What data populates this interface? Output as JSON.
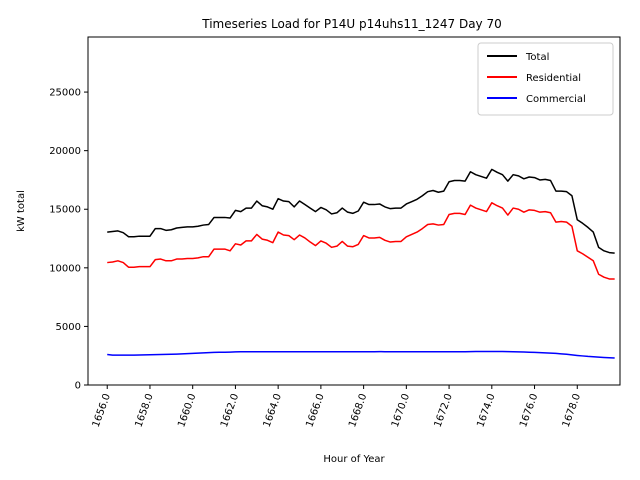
{
  "chart_data": {
    "type": "line",
    "title": "Timeseries Load for P14U p14uhs11_1247  Day 70",
    "xlabel": "Hour of Year",
    "ylabel": "kW total",
    "xlim": [
      1655.1,
      1680.0
    ],
    "ylim": [
      0,
      29700
    ],
    "x_ticks": [
      1656,
      1658,
      1660,
      1662,
      1664,
      1666,
      1668,
      1670,
      1672,
      1674,
      1676,
      1678
    ],
    "x_tick_labels": [
      "1656.0",
      "1658.0",
      "1660.0",
      "1662.0",
      "1664.0",
      "1666.0",
      "1668.0",
      "1670.0",
      "1672.0",
      "1674.0",
      "1676.0",
      "1678.0"
    ],
    "y_ticks": [
      0,
      5000,
      10000,
      15000,
      20000,
      25000
    ],
    "y_tick_labels": [
      "0",
      "5000",
      "10000",
      "15000",
      "20000",
      "25000"
    ],
    "legend_position": "upper-right",
    "x": [
      1656.0,
      1656.25,
      1656.5,
      1656.75,
      1657.0,
      1657.25,
      1657.5,
      1657.75,
      1658.0,
      1658.25,
      1658.5,
      1658.75,
      1659.0,
      1659.25,
      1659.5,
      1659.75,
      1660.0,
      1660.25,
      1660.5,
      1660.75,
      1661.0,
      1661.25,
      1661.5,
      1661.75,
      1662.0,
      1662.25,
      1662.5,
      1662.75,
      1663.0,
      1663.25,
      1663.5,
      1663.75,
      1664.0,
      1664.25,
      1664.5,
      1664.75,
      1665.0,
      1665.25,
      1665.5,
      1665.75,
      1666.0,
      1666.25,
      1666.5,
      1666.75,
      1667.0,
      1667.25,
      1667.5,
      1667.75,
      1668.0,
      1668.25,
      1668.5,
      1668.75,
      1669.0,
      1669.25,
      1669.5,
      1669.75,
      1670.0,
      1670.25,
      1670.5,
      1670.75,
      1671.0,
      1671.25,
      1671.5,
      1671.75,
      1672.0,
      1672.25,
      1672.5,
      1672.75,
      1673.0,
      1673.25,
      1673.5,
      1673.75,
      1674.0,
      1674.25,
      1674.5,
      1674.75,
      1675.0,
      1675.25,
      1675.5,
      1675.75,
      1676.0,
      1676.25,
      1676.5,
      1676.75,
      1677.0,
      1677.25,
      1677.5,
      1677.75,
      1678.0,
      1678.25,
      1678.5,
      1678.75,
      1679.0,
      1679.25,
      1679.5,
      1679.75
    ],
    "series": [
      {
        "name": "Total",
        "color": "#000000",
        "values": [
          13050,
          13100,
          13150,
          13000,
          12650,
          12650,
          12700,
          12700,
          12700,
          13350,
          13350,
          13200,
          13250,
          13400,
          13450,
          13500,
          13500,
          13550,
          13650,
          13700,
          14300,
          14300,
          14300,
          14250,
          14900,
          14800,
          15100,
          15100,
          15700,
          15300,
          15200,
          15000,
          15900,
          15700,
          15650,
          15200,
          15700,
          15400,
          15100,
          14800,
          15150,
          14950,
          14600,
          14700,
          15100,
          14750,
          14650,
          14850,
          15600,
          15400,
          15400,
          15450,
          15200,
          15050,
          15100,
          15100,
          15450,
          15650,
          15850,
          16150,
          16500,
          16600,
          16450,
          16550,
          17350,
          17450,
          17450,
          17400,
          18200,
          17950,
          17800,
          17650,
          18400,
          18150,
          17950,
          17400,
          17950,
          17850,
          17600,
          17750,
          17700,
          17500,
          17550,
          17450,
          16550,
          16550,
          16500,
          16150,
          14100,
          13800,
          13450,
          13050,
          11750,
          11450,
          11300,
          11250
        ]
      },
      {
        "name": "Residential",
        "color": "#ff0000",
        "values": [
          10450,
          10500,
          10600,
          10450,
          10050,
          10050,
          10100,
          10100,
          10100,
          10700,
          10750,
          10600,
          10600,
          10750,
          10750,
          10800,
          10800,
          10850,
          10950,
          10950,
          11600,
          11600,
          11600,
          11450,
          12050,
          11950,
          12300,
          12300,
          12850,
          12450,
          12350,
          12150,
          13050,
          12800,
          12750,
          12400,
          12800,
          12550,
          12200,
          11900,
          12300,
          12100,
          11750,
          11850,
          12250,
          11850,
          11800,
          12000,
          12750,
          12550,
          12550,
          12600,
          12350,
          12200,
          12250,
          12250,
          12650,
          12850,
          13050,
          13350,
          13700,
          13750,
          13650,
          13700,
          14550,
          14650,
          14650,
          14550,
          15350,
          15100,
          14950,
          14800,
          15550,
          15300,
          15100,
          14500,
          15100,
          15000,
          14750,
          14950,
          14900,
          14750,
          14800,
          14700,
          13900,
          13950,
          13900,
          13550,
          11450,
          11200,
          10900,
          10600,
          9450,
          9200,
          9050,
          9050
        ]
      },
      {
        "name": "Commercial",
        "color": "#0000ff",
        "values": [
          2600,
          2550,
          2550,
          2550,
          2550,
          2550,
          2560,
          2570,
          2580,
          2590,
          2600,
          2610,
          2620,
          2640,
          2660,
          2680,
          2700,
          2720,
          2740,
          2760,
          2780,
          2790,
          2800,
          2810,
          2830,
          2840,
          2840,
          2840,
          2840,
          2840,
          2840,
          2840,
          2840,
          2840,
          2840,
          2840,
          2840,
          2840,
          2840,
          2835,
          2835,
          2835,
          2835,
          2835,
          2840,
          2840,
          2840,
          2840,
          2840,
          2840,
          2840,
          2850,
          2840,
          2840,
          2840,
          2840,
          2840,
          2840,
          2840,
          2840,
          2840,
          2840,
          2840,
          2840,
          2840,
          2835,
          2835,
          2840,
          2850,
          2860,
          2860,
          2860,
          2860,
          2860,
          2860,
          2850,
          2840,
          2830,
          2820,
          2800,
          2780,
          2760,
          2740,
          2720,
          2700,
          2660,
          2620,
          2570,
          2520,
          2480,
          2440,
          2410,
          2380,
          2350,
          2330,
          2300
        ]
      }
    ]
  }
}
